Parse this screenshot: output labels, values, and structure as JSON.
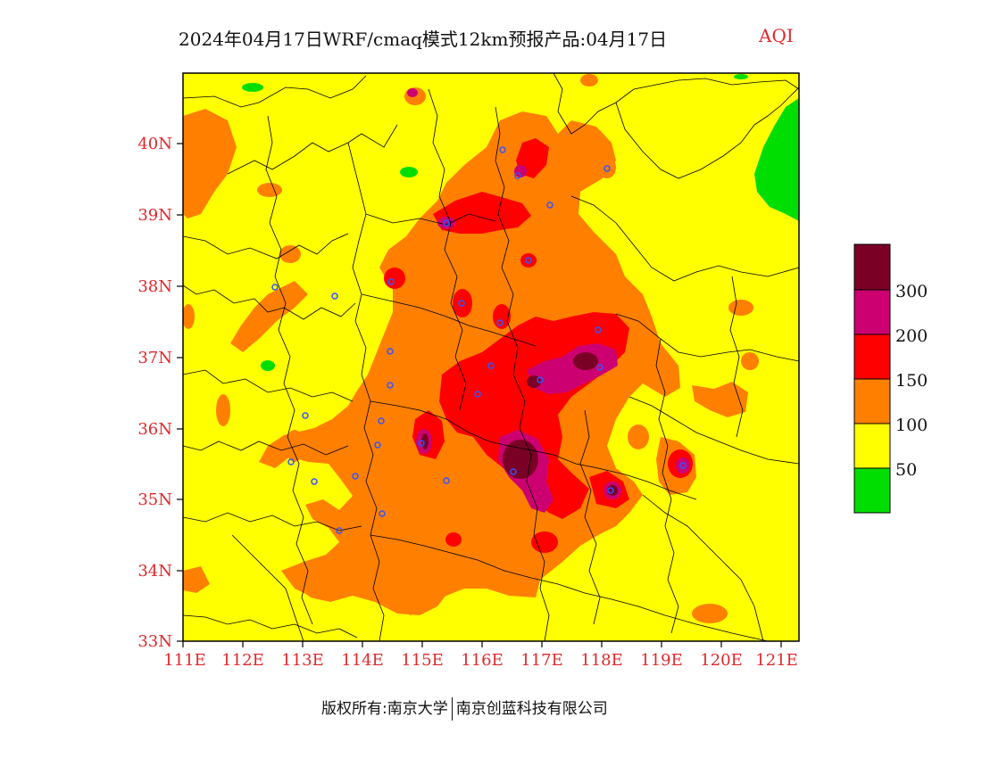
{
  "title": {
    "main": "2024年04月17日WRF/cmaq模式12km预报产品:04月17日",
    "variable": "AQI"
  },
  "map": {
    "lat_labels": [
      "40N",
      "39N",
      "38N",
      "37N",
      "36N",
      "35N",
      "34N",
      "33N"
    ],
    "lat_values": [
      40,
      39,
      38,
      37,
      36,
      35,
      34,
      33
    ],
    "lon_labels": [
      "111E",
      "112E",
      "113E",
      "114E",
      "115E",
      "116E",
      "117E",
      "118E",
      "119E",
      "120E",
      "121E"
    ],
    "lon_values": [
      111,
      112,
      113,
      114,
      115,
      116,
      117,
      118,
      119,
      120,
      121
    ],
    "lat_range": [
      33,
      41
    ],
    "lon_range": [
      111,
      121.3
    ],
    "tick_label_color": "#e0282b"
  },
  "legend": {
    "levels": [
      "300",
      "200",
      "150",
      "100",
      "50"
    ],
    "colors": [
      "#7a0026",
      "#cc0070",
      "#ff0000",
      "#ff7f00",
      "#ffff00",
      "#00dd00"
    ]
  },
  "footer": {
    "copyright": "版权所有:南京大学",
    "company": "南京创蓝科技有限公司"
  }
}
